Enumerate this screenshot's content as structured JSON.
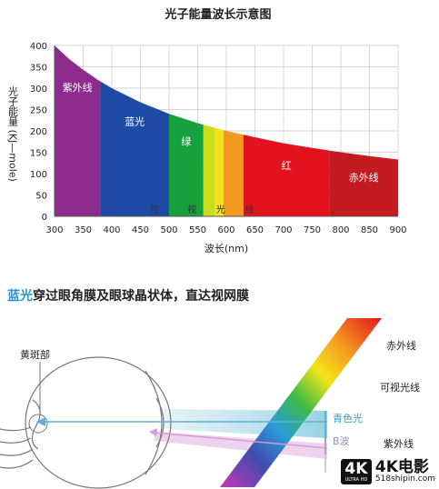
{
  "chart_data": {
    "type": "area",
    "title": "光子能量波长示意图",
    "xlabel": "波长(nm)",
    "ylabel": "光子能量 (KJ—mole)",
    "xlim": [
      300,
      900
    ],
    "ylim": [
      0,
      400
    ],
    "xticks": [
      300,
      350,
      400,
      450,
      500,
      550,
      600,
      650,
      700,
      750,
      800,
      850,
      900
    ],
    "yticks": [
      0,
      50,
      100,
      150,
      200,
      250,
      300,
      350,
      400
    ],
    "grid": true,
    "curve": {
      "x": [
        300,
        325,
        350,
        375,
        400,
        450,
        500,
        550,
        600,
        650,
        700,
        750,
        800,
        850,
        900
      ],
      "y": [
        400,
        369,
        343,
        320,
        300,
        267,
        240,
        218,
        200,
        185,
        171,
        160,
        150,
        141,
        133
      ]
    },
    "bands": [
      {
        "name": "紫外线",
        "x0": 300,
        "x1": 380,
        "color": "#8e2c8e"
      },
      {
        "name": "蓝光",
        "x0": 380,
        "x1": 500,
        "color": "#1f4aa6"
      },
      {
        "name": "绿",
        "x0": 500,
        "x1": 560,
        "color": "#17a13d"
      },
      {
        "name": "",
        "x0": 560,
        "x1": 580,
        "color": "#c9dc1d"
      },
      {
        "name": "",
        "x0": 580,
        "x1": 595,
        "color": "#f4e21a"
      },
      {
        "name": "",
        "x0": 595,
        "x1": 630,
        "color": "#f29a1f"
      },
      {
        "name": "红",
        "x0": 630,
        "x1": 780,
        "color": "#e2121e"
      },
      {
        "name": "赤外线",
        "x0": 780,
        "x1": 900,
        "color": "#c41b22"
      }
    ],
    "inner_labels": [
      {
        "text": "可",
        "x": 475
      },
      {
        "text": "视",
        "x": 540
      },
      {
        "text": "光",
        "x": 590
      },
      {
        "text": "线",
        "x": 640
      }
    ]
  },
  "diagram": {
    "title_highlight": "蓝光",
    "title_rest": "穿过眼角膜及眼球晶状体，直达视网膜",
    "macula_label": "黄斑部",
    "labels": {
      "infrared": "赤外线",
      "visible": "可视光线",
      "cyan": "青色光",
      "b_wave": "B波",
      "uv": "紫外线"
    }
  },
  "watermark": {
    "box_text": "4K",
    "box_sub": "ULTRA HD",
    "title": "4K电影",
    "url": "518shipin.com"
  }
}
